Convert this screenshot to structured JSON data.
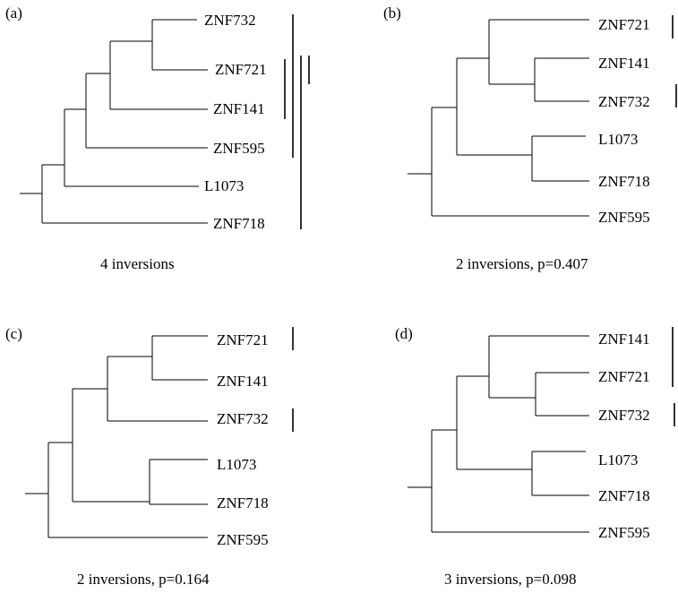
{
  "panels": [
    {
      "label": "(a)",
      "caption": "4 inversions",
      "leaves": [
        "ZNF732",
        "ZNF721",
        "ZNF141",
        "ZNF595",
        "L1073",
        "ZNF718"
      ]
    },
    {
      "label": "(b)",
      "caption": "2 inversions, p=0.407",
      "leaves": [
        "ZNF721",
        "ZNF141",
        "ZNF732",
        "L1073",
        "ZNF718",
        "ZNF595"
      ]
    },
    {
      "label": "(c)",
      "caption": "2 inversions, p=0.164",
      "leaves": [
        "ZNF721",
        "ZNF141",
        "ZNF732",
        "L1073",
        "ZNF718",
        "ZNF595"
      ]
    },
    {
      "label": "(d)",
      "caption": "3 inversions, p=0.098",
      "leaves": [
        "ZNF141",
        "ZNF721",
        "ZNF732",
        "L1073",
        "ZNF718",
        "ZNF595"
      ]
    }
  ]
}
